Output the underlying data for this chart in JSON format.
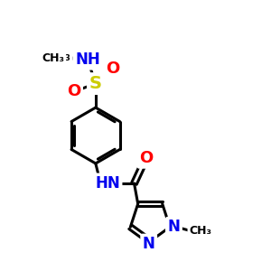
{
  "bg_color": "#ffffff",
  "atom_colors": {
    "C": "#000000",
    "N": "#0000ee",
    "O": "#ff0000",
    "S": "#cccc00",
    "H": "#000000"
  },
  "bond_color": "#000000",
  "bond_width": 2.2,
  "figsize": [
    3.0,
    3.0
  ],
  "dpi": 100,
  "xlim": [
    0,
    10
  ],
  "ylim": [
    0,
    10
  ],
  "font_size_atom": 12,
  "font_size_small": 10
}
